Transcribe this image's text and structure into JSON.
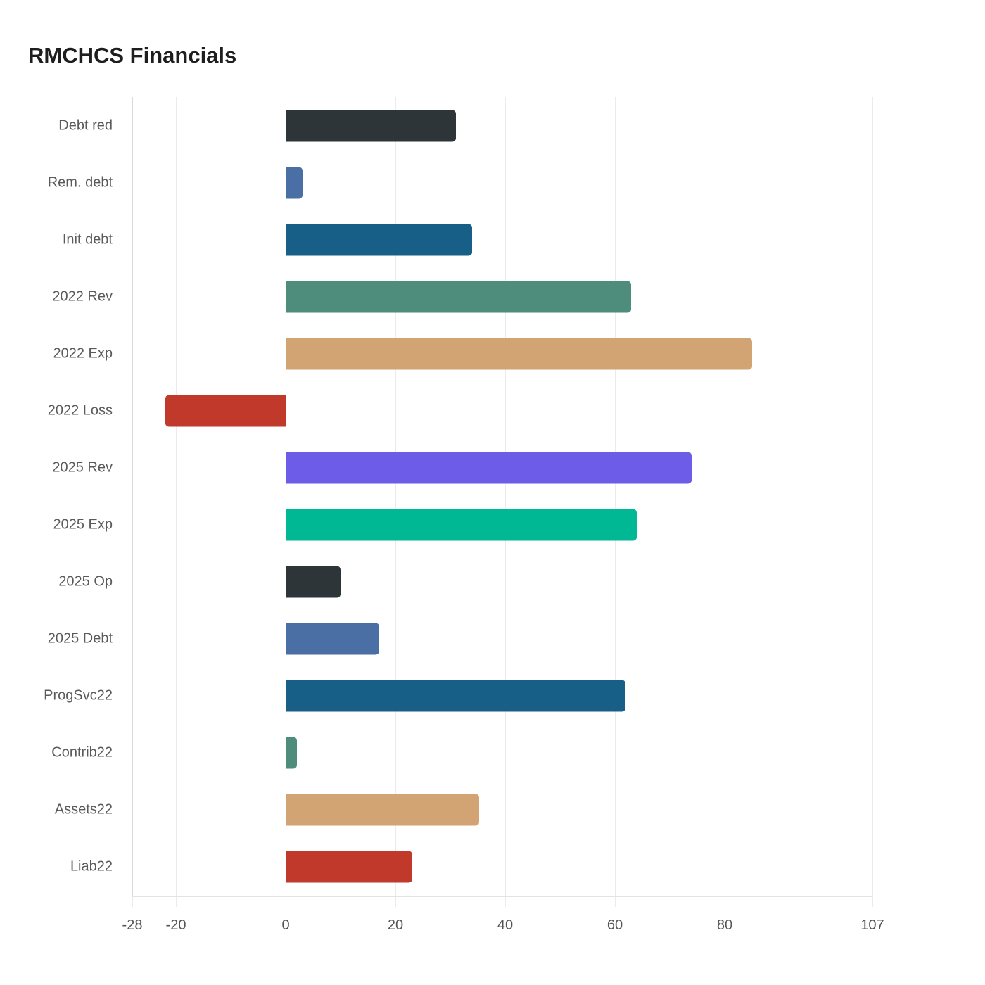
{
  "title": "RMCHCS Financials",
  "chart_data": {
    "type": "bar",
    "orientation": "horizontal",
    "title": "RMCHCS Financials",
    "xlabel": "",
    "ylabel": "",
    "xlim": [
      -28,
      107
    ],
    "x_ticks": [
      -28,
      -20,
      0,
      20,
      40,
      60,
      80,
      107
    ],
    "grid": true,
    "legend": null,
    "categories": [
      "Debt red",
      "Rem. debt",
      "Init debt",
      "2022 Rev",
      "2022 Exp",
      "2022 Loss",
      "2025 Rev",
      "2025 Exp",
      "2025 Op",
      "2025 Debt",
      "ProgSvc22",
      "Contrib22",
      "Assets22",
      "Liab22"
    ],
    "values": [
      31,
      3,
      34,
      63,
      85,
      -22,
      74,
      64,
      10,
      17,
      62,
      2,
      35.3,
      23.1
    ],
    "colors": [
      "#2d3538",
      "#4a6fa5",
      "#185f87",
      "#4e8d7b",
      "#d2a473",
      "#c0392b",
      "#6c5ce7",
      "#00b894",
      "#2d3538",
      "#4a6fa5",
      "#185f87",
      "#4e8d7b",
      "#d2a473",
      "#c0392b"
    ]
  }
}
